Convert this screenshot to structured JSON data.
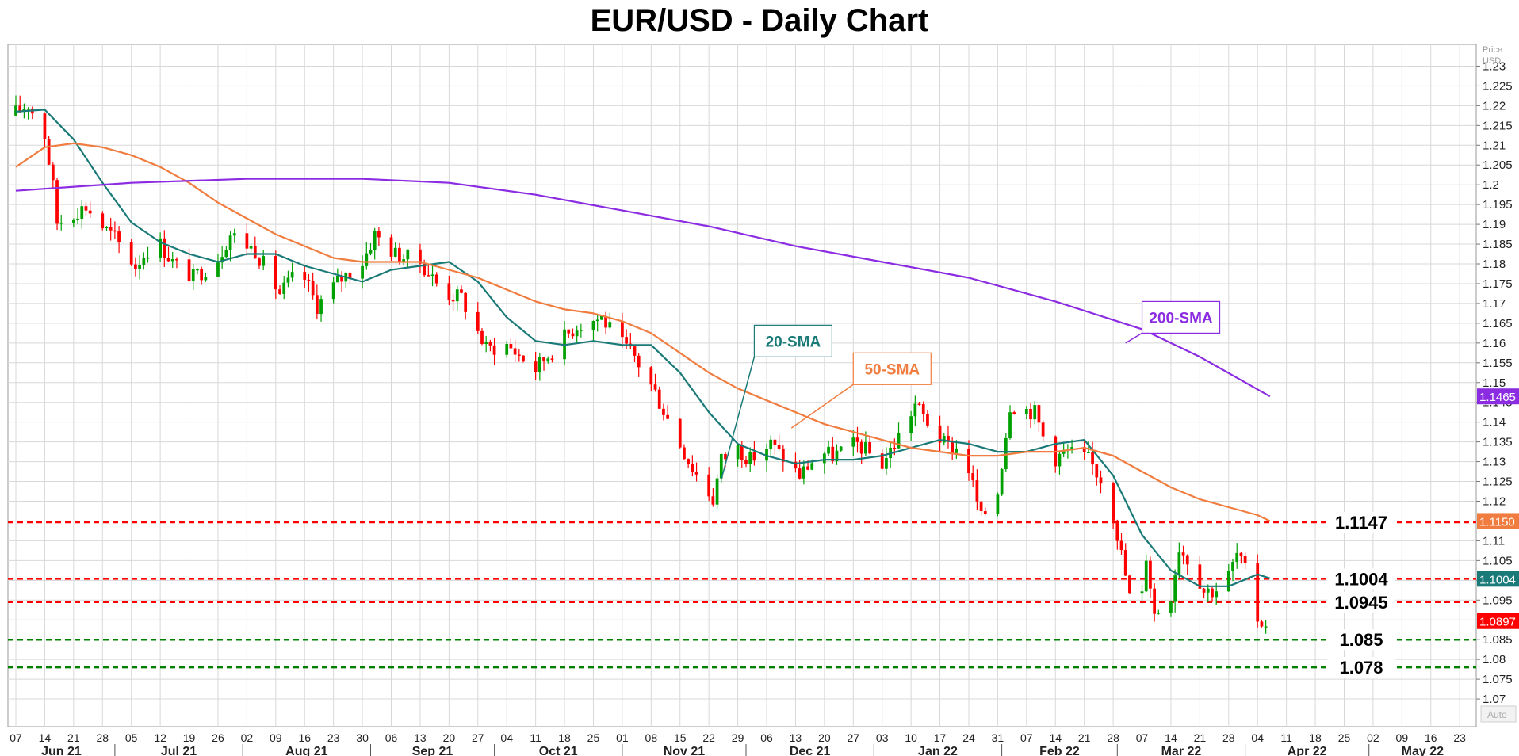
{
  "chart_data": {
    "type": "candlestick",
    "title": "EUR/USD - Daily Chart",
    "price_axis": {
      "unit_label_line1": "Price",
      "unit_label_line2": "USD",
      "ylim": [
        1.063,
        1.2355
      ],
      "ticks": [
        1.23,
        1.225,
        1.22,
        1.215,
        1.21,
        1.205,
        1.2,
        1.195,
        1.19,
        1.185,
        1.18,
        1.175,
        1.17,
        1.165,
        1.16,
        1.155,
        1.15,
        1.145,
        1.14,
        1.135,
        1.13,
        1.125,
        1.12,
        1.115,
        1.11,
        1.105,
        1.1,
        1.095,
        1.09,
        1.085,
        1.08,
        1.075,
        1.07
      ],
      "tick_labels": [
        "1.23",
        "1.225",
        "1.22",
        "1.215",
        "1.21",
        "1.205",
        "1.2",
        "1.195",
        "1.19",
        "1.185",
        "1.18",
        "1.175",
        "1.17",
        "1.165",
        "1.16",
        "1.155",
        "1.15",
        "1.145",
        "1.14",
        "1.135",
        "1.13",
        "1.125",
        "1.12",
        "1.115",
        "1.11",
        "1.105",
        "1.1",
        "1.095",
        "1.09",
        "1.085",
        "1.08",
        "1.075",
        "1.07"
      ],
      "auto_label": "Auto"
    },
    "time_axis": {
      "start_date": "2021-06-07",
      "end_date": "2022-05-27",
      "week_ticks": [
        "2021-06-07",
        "2021-06-14",
        "2021-06-21",
        "2021-06-28",
        "2021-07-05",
        "2021-07-12",
        "2021-07-19",
        "2021-07-26",
        "2021-08-02",
        "2021-08-09",
        "2021-08-16",
        "2021-08-23",
        "2021-08-30",
        "2021-09-06",
        "2021-09-13",
        "2021-09-20",
        "2021-09-27",
        "2021-10-04",
        "2021-10-11",
        "2021-10-18",
        "2021-10-25",
        "2021-11-01",
        "2021-11-08",
        "2021-11-15",
        "2021-11-22",
        "2021-11-29",
        "2021-12-06",
        "2021-12-13",
        "2021-12-20",
        "2021-12-27",
        "2022-01-03",
        "2022-01-10",
        "2022-01-17",
        "2022-01-24",
        "2022-01-31",
        "2022-02-07",
        "2022-02-14",
        "2022-02-21",
        "2022-02-28",
        "2022-03-07",
        "2022-03-14",
        "2022-03-21",
        "2022-03-28",
        "2022-04-04",
        "2022-04-11",
        "2022-04-18",
        "2022-04-25",
        "2022-05-02",
        "2022-05-09",
        "2022-05-16",
        "2022-05-23"
      ],
      "week_labels": [
        "07",
        "14",
        "21",
        "28",
        "05",
        "12",
        "19",
        "26",
        "02",
        "09",
        "16",
        "23",
        "30",
        "06",
        "13",
        "20",
        "27",
        "04",
        "11",
        "18",
        "25",
        "01",
        "08",
        "15",
        "22",
        "29",
        "06",
        "13",
        "20",
        "27",
        "03",
        "10",
        "17",
        "24",
        "31",
        "07",
        "14",
        "21",
        "28",
        "07",
        "14",
        "21",
        "28",
        "04",
        "11",
        "18",
        "25",
        "02",
        "09",
        "16",
        "23"
      ],
      "month_starts": [
        "2021-06-01",
        "2021-07-01",
        "2021-08-01",
        "2021-09-01",
        "2021-10-01",
        "2021-11-01",
        "2021-12-01",
        "2022-01-01",
        "2022-02-01",
        "2022-03-01",
        "2022-04-01",
        "2022-05-01",
        "2022-06-01"
      ],
      "month_labels": [
        "Jun 21",
        "Jul 21",
        "Aug 21",
        "Sep 21",
        "Oct 21",
        "Nov 21",
        "Dec 21",
        "Jan 22",
        "Feb 22",
        "Mar 22",
        "Apr 22",
        "May 22"
      ]
    },
    "price_path": [
      [
        "2021-06-07",
        1.2175
      ],
      [
        "2021-06-11",
        1.2205
      ],
      [
        "2021-06-15",
        1.2125
      ],
      [
        "2021-06-17",
        1.1995
      ],
      [
        "2021-06-18",
        1.1905
      ],
      [
        "2021-06-23",
        1.1935
      ],
      [
        "2021-06-25",
        1.1945
      ],
      [
        "2021-06-29",
        1.1895
      ],
      [
        "2021-07-02",
        1.1865
      ],
      [
        "2021-07-07",
        1.1795
      ],
      [
        "2021-07-12",
        1.1865
      ],
      [
        "2021-07-16",
        1.1805
      ],
      [
        "2021-07-21",
        1.1765
      ],
      [
        "2021-07-27",
        1.1815
      ],
      [
        "2021-07-30",
        1.1875
      ],
      [
        "2021-08-05",
        1.1835
      ],
      [
        "2021-08-11",
        1.1725
      ],
      [
        "2021-08-16",
        1.1785
      ],
      [
        "2021-08-20",
        1.1695
      ],
      [
        "2021-08-25",
        1.1755
      ],
      [
        "2021-08-31",
        1.1805
      ],
      [
        "2021-09-03",
        1.1875
      ],
      [
        "2021-09-08",
        1.1825
      ],
      [
        "2021-09-14",
        1.1805
      ],
      [
        "2021-09-20",
        1.1725
      ],
      [
        "2021-09-24",
        1.1715
      ],
      [
        "2021-09-30",
        1.1585
      ],
      [
        "2021-10-05",
        1.1595
      ],
      [
        "2021-10-12",
        1.1535
      ],
      [
        "2021-10-18",
        1.1605
      ],
      [
        "2021-10-22",
        1.1645
      ],
      [
        "2021-10-28",
        1.1665
      ],
      [
        "2021-11-01",
        1.1605
      ],
      [
        "2021-11-05",
        1.1565
      ],
      [
        "2021-11-10",
        1.1475
      ],
      [
        "2021-11-15",
        1.1365
      ],
      [
        "2021-11-19",
        1.1285
      ],
      [
        "2021-11-24",
        1.1205
      ],
      [
        "2021-11-26",
        1.1305
      ],
      [
        "2021-11-30",
        1.1335
      ],
      [
        "2021-12-03",
        1.1305
      ],
      [
        "2021-12-08",
        1.1345
      ],
      [
        "2021-12-15",
        1.1265
      ],
      [
        "2021-12-20",
        1.1325
      ],
      [
        "2021-12-23",
        1.1315
      ],
      [
        "2021-12-29",
        1.1345
      ],
      [
        "2022-01-04",
        1.1295
      ],
      [
        "2022-01-07",
        1.1345
      ],
      [
        "2022-01-12",
        1.1445
      ],
      [
        "2022-01-14",
        1.1415
      ],
      [
        "2022-01-19",
        1.1345
      ],
      [
        "2022-01-24",
        1.1325
      ],
      [
        "2022-01-28",
        1.1155
      ],
      [
        "2022-02-01",
        1.1225
      ],
      [
        "2022-02-04",
        1.1445
      ],
      [
        "2022-02-10",
        1.1425
      ],
      [
        "2022-02-14",
        1.1305
      ],
      [
        "2022-02-18",
        1.1325
      ],
      [
        "2022-02-23",
        1.1305
      ],
      [
        "2022-02-28",
        1.1225
      ],
      [
        "2022-03-03",
        1.1065
      ],
      [
        "2022-03-07",
        1.0855
      ],
      [
        "2022-03-09",
        1.1065
      ],
      [
        "2022-03-11",
        1.0915
      ],
      [
        "2022-03-15",
        1.0965
      ],
      [
        "2022-03-17",
        1.1085
      ],
      [
        "2022-03-21",
        1.1025
      ],
      [
        "2022-03-23",
        1.0975
      ],
      [
        "2022-03-25",
        1.0975
      ],
      [
        "2022-03-28",
        1.0985
      ],
      [
        "2022-03-31",
        1.1065
      ],
      [
        "2022-04-01",
        1.1045
      ],
      [
        "2022-04-04",
        1.0975
      ],
      [
        "2022-04-05",
        1.0905
      ],
      [
        "2022-04-06",
        1.0895
      ]
    ],
    "series": [
      {
        "name": "20-SMA",
        "color": "#1a7a78",
        "points": [
          [
            "2021-06-07",
            1.2185
          ],
          [
            "2021-06-14",
            1.219
          ],
          [
            "2021-06-21",
            1.2115
          ],
          [
            "2021-06-28",
            1.2005
          ],
          [
            "2021-07-05",
            1.1905
          ],
          [
            "2021-07-12",
            1.1855
          ],
          [
            "2021-07-19",
            1.1825
          ],
          [
            "2021-07-26",
            1.1805
          ],
          [
            "2021-08-02",
            1.1825
          ],
          [
            "2021-08-09",
            1.1825
          ],
          [
            "2021-08-16",
            1.1795
          ],
          [
            "2021-08-23",
            1.1775
          ],
          [
            "2021-08-30",
            1.1755
          ],
          [
            "2021-09-06",
            1.1785
          ],
          [
            "2021-09-13",
            1.1795
          ],
          [
            "2021-09-20",
            1.1805
          ],
          [
            "2021-09-27",
            1.1755
          ],
          [
            "2021-10-04",
            1.1665
          ],
          [
            "2021-10-11",
            1.1605
          ],
          [
            "2021-10-18",
            1.1595
          ],
          [
            "2021-10-25",
            1.1605
          ],
          [
            "2021-11-01",
            1.1595
          ],
          [
            "2021-11-08",
            1.1595
          ],
          [
            "2021-11-15",
            1.1525
          ],
          [
            "2021-11-22",
            1.1425
          ],
          [
            "2021-11-29",
            1.1345
          ],
          [
            "2021-12-06",
            1.1315
          ],
          [
            "2021-12-13",
            1.1295
          ],
          [
            "2021-12-20",
            1.1305
          ],
          [
            "2021-12-27",
            1.1305
          ],
          [
            "2022-01-03",
            1.1315
          ],
          [
            "2022-01-10",
            1.1335
          ],
          [
            "2022-01-17",
            1.1355
          ],
          [
            "2022-01-24",
            1.1345
          ],
          [
            "2022-01-31",
            1.1325
          ],
          [
            "2022-02-07",
            1.1325
          ],
          [
            "2022-02-14",
            1.1345
          ],
          [
            "2022-02-21",
            1.1355
          ],
          [
            "2022-02-28",
            1.1265
          ],
          [
            "2022-03-07",
            1.1115
          ],
          [
            "2022-03-14",
            1.1025
          ],
          [
            "2022-03-21",
            1.0985
          ],
          [
            "2022-03-28",
            1.0985
          ],
          [
            "2022-04-04",
            1.1015
          ],
          [
            "2022-04-07",
            1.1005
          ]
        ]
      },
      {
        "name": "50-SMA",
        "color": "#f07d3f",
        "points": [
          [
            "2021-06-07",
            1.2045
          ],
          [
            "2021-06-14",
            1.2095
          ],
          [
            "2021-06-21",
            1.2105
          ],
          [
            "2021-06-28",
            1.2095
          ],
          [
            "2021-07-05",
            1.2075
          ],
          [
            "2021-07-12",
            1.2045
          ],
          [
            "2021-07-19",
            1.2005
          ],
          [
            "2021-07-26",
            1.1955
          ],
          [
            "2021-08-02",
            1.1915
          ],
          [
            "2021-08-09",
            1.1875
          ],
          [
            "2021-08-16",
            1.1845
          ],
          [
            "2021-08-23",
            1.1815
          ],
          [
            "2021-08-30",
            1.1805
          ],
          [
            "2021-09-06",
            1.1805
          ],
          [
            "2021-09-13",
            1.1805
          ],
          [
            "2021-09-20",
            1.1785
          ],
          [
            "2021-09-27",
            1.1765
          ],
          [
            "2021-10-04",
            1.1735
          ],
          [
            "2021-10-11",
            1.1705
          ],
          [
            "2021-10-18",
            1.1685
          ],
          [
            "2021-10-25",
            1.1675
          ],
          [
            "2021-11-01",
            1.1655
          ],
          [
            "2021-11-08",
            1.1625
          ],
          [
            "2021-11-15",
            1.1575
          ],
          [
            "2021-11-22",
            1.1525
          ],
          [
            "2021-11-29",
            1.1485
          ],
          [
            "2021-12-06",
            1.1455
          ],
          [
            "2021-12-13",
            1.1425
          ],
          [
            "2021-12-20",
            1.1395
          ],
          [
            "2021-12-27",
            1.1375
          ],
          [
            "2022-01-03",
            1.1355
          ],
          [
            "2022-01-10",
            1.1335
          ],
          [
            "2022-01-17",
            1.1325
          ],
          [
            "2022-01-24",
            1.1315
          ],
          [
            "2022-01-31",
            1.1315
          ],
          [
            "2022-02-07",
            1.1325
          ],
          [
            "2022-02-14",
            1.1325
          ],
          [
            "2022-02-21",
            1.1335
          ],
          [
            "2022-02-28",
            1.1315
          ],
          [
            "2022-03-07",
            1.1275
          ],
          [
            "2022-03-14",
            1.1235
          ],
          [
            "2022-03-21",
            1.1205
          ],
          [
            "2022-03-28",
            1.1185
          ],
          [
            "2022-04-04",
            1.1165
          ],
          [
            "2022-04-07",
            1.115
          ]
        ]
      },
      {
        "name": "200-SMA",
        "color": "#8b2be2",
        "points": [
          [
            "2021-06-07",
            1.1985
          ],
          [
            "2021-07-05",
            1.2005
          ],
          [
            "2021-08-02",
            1.2015
          ],
          [
            "2021-08-30",
            1.2015
          ],
          [
            "2021-09-20",
            1.2005
          ],
          [
            "2021-10-11",
            1.1975
          ],
          [
            "2021-11-01",
            1.1935
          ],
          [
            "2021-11-22",
            1.1895
          ],
          [
            "2021-12-13",
            1.1845
          ],
          [
            "2022-01-03",
            1.1805
          ],
          [
            "2022-01-24",
            1.1765
          ],
          [
            "2022-02-14",
            1.1705
          ],
          [
            "2022-03-07",
            1.1635
          ],
          [
            "2022-03-21",
            1.1565
          ],
          [
            "2022-04-07",
            1.1465
          ]
        ]
      }
    ],
    "sma_labels": [
      {
        "text": "20-SMA",
        "color": "#1a7a78",
        "target_date": "2021-11-25",
        "target_price": 1.1255,
        "box_date": "2021-12-03",
        "box_price": 1.1605
      },
      {
        "text": "50-SMA",
        "color": "#f07d3f",
        "target_date": "2021-12-12",
        "target_price": 1.1385,
        "box_date": "2021-12-27",
        "box_price": 1.1535
      },
      {
        "text": "200-SMA",
        "color": "#8b2be2",
        "target_date": "2022-03-03",
        "target_price": 1.16,
        "box_date": "2022-03-07",
        "box_price": 1.1665
      }
    ],
    "horizontal_levels": [
      {
        "value": 1.1147,
        "label": "1.1147",
        "color": "#ff0000"
      },
      {
        "value": 1.1004,
        "label": "1.1004",
        "color": "#ff0000"
      },
      {
        "value": 1.0945,
        "label": "1.0945",
        "color": "#ff0000"
      },
      {
        "value": 1.085,
        "label": "1.085",
        "color": "#008000"
      },
      {
        "value": 1.078,
        "label": "1.078",
        "color": "#008000"
      }
    ],
    "price_tags": [
      {
        "value": 1.1465,
        "label": "1.1465",
        "color": "#8b2be2"
      },
      {
        "value": 1.115,
        "label": "1.1150",
        "color": "#f07d3f"
      },
      {
        "value": 1.1004,
        "label": "1.1004",
        "color": "#1a7a78"
      },
      {
        "value": 1.0897,
        "label": "1.0897",
        "color": "#ff0000"
      }
    ],
    "candle_colors": {
      "up": "#00a000",
      "down": "#ff0000"
    },
    "grid": true
  }
}
